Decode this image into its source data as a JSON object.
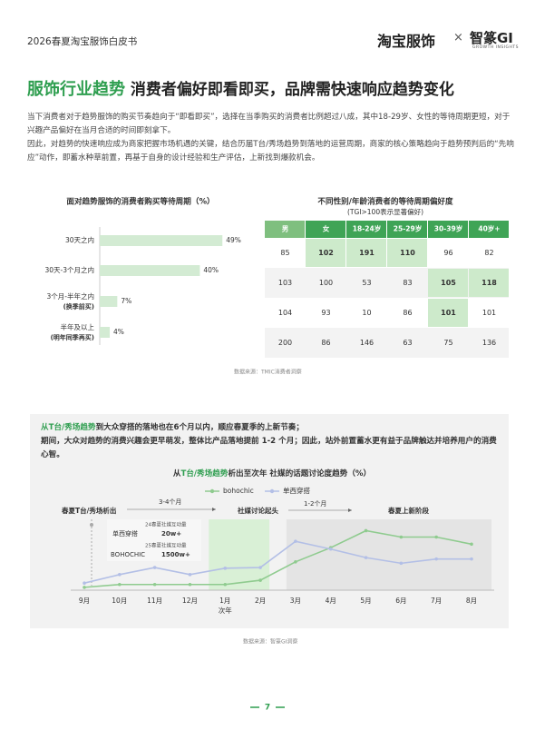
{
  "header": {
    "report": "2026春夏淘宝服饰白皮书",
    "brand": "淘宝服饰",
    "cross": "×",
    "partner": "智篆GI",
    "partner_sub": "GROWTH INSIGHTS"
  },
  "title": {
    "highlight": "服饰行业趋势",
    "text": "消费者偏好即看即买，品牌需快速响应趋势变化"
  },
  "intro": [
    "当下消费者对于趋势服饰的购买节奏趋向于“即看即买”，选择在当季购买的消费者比例超过八成，其中18-29岁、女性的等待周期更短，对于兴趣产品偏好在当月合适的时间即刻拿下。",
    "因此，对趋势的快速响应成为商家把握市场机遇的关键，结合历届T台/秀场趋势到落地的运营周期，商家的核心策略趋向于趋势预判后的“先响应”动作，即蓄水种草前置，再基于自身的设计经验和生产评估，上新找到爆款机会。"
  ],
  "chart_data": [
    {
      "type": "hbar",
      "title": "面对趋势服饰的消费者购买等待周期（%）",
      "categories": [
        "30天之内",
        "30天-3个月之内",
        "3个月-半年之内",
        "半年及以上"
      ],
      "sublabels": [
        null,
        null,
        "(换季前买)",
        "(明年同季再买)"
      ],
      "values": [
        49,
        40,
        7,
        4
      ],
      "value_labels": [
        "49%",
        "40%",
        "7%",
        "4%"
      ],
      "color": "#d3ebd3",
      "xlim": [
        0,
        50
      ]
    },
    {
      "type": "line",
      "title": [
        "从",
        "T台/秀场趋势",
        "析出至次年 社媒的话题讨论度趋势（%）"
      ],
      "categories": [
        "9月",
        "10月",
        "11月",
        "12月",
        "1月",
        "2月",
        "3月",
        "4月",
        "5月",
        "6月",
        "7月",
        "8月"
      ],
      "category_note": "次年",
      "series": [
        {
          "name": "bohochic",
          "color": "#8fcb8f",
          "values": [
            4,
            8,
            8,
            8,
            8,
            14,
            40,
            60,
            84,
            75,
            75,
            65
          ]
        },
        {
          "name": "单西穿搭",
          "color": "#b3bfe6",
          "values": [
            10,
            22,
            32,
            22,
            31,
            32,
            69,
            58,
            46,
            38,
            44,
            44
          ]
        }
      ],
      "ylim": [
        0,
        100
      ],
      "annotations": {
        "start": "春夏T台/秀场析出",
        "gap1": "3-4个月",
        "social": "社媒讨论起头",
        "gap2": "1-2个月",
        "launch": "春夏上新阶段",
        "box": [
          "24春夏社媒互动量",
          "单西穿搭",
          "20w+",
          "25春夏社媒互动量",
          "BOHOCHIC",
          "1500w+"
        ]
      }
    }
  ],
  "table": {
    "title": "不同性别/年龄消费者的等待周期偏好度",
    "subtitle": "(TGI>100表示显著偏好)",
    "header": [
      "男",
      "女",
      "18-24岁",
      "25-29岁",
      "30-39岁",
      "40岁+"
    ],
    "rows": [
      [
        85,
        102,
        191,
        110,
        96,
        82
      ],
      [
        103,
        100,
        53,
        83,
        105,
        118
      ],
      [
        104,
        93,
        10,
        86,
        101,
        101
      ],
      [
        200,
        86,
        146,
        63,
        75,
        136
      ]
    ],
    "highlighted": [
      [
        0,
        1
      ],
      [
        0,
        2
      ],
      [
        0,
        3
      ],
      [
        1,
        4
      ],
      [
        1,
        5
      ],
      [
        2,
        4
      ]
    ]
  },
  "source1": "数据来源：TMIC消费者洞察",
  "callout": [
    "从T台/秀场趋势",
    "到大众穿搭的落地也在6个月以内，顺应春夏季的上新节奏；",
    "期间，大众对趋势的消费兴趣会更早萌发，整体比产品落地提前 1-2 个月；因此，站外前置蓄水更有益于品牌触达并培养用户的消费心智。"
  ],
  "source2": "数据来源：智篆GI洞察",
  "page_number": "7"
}
